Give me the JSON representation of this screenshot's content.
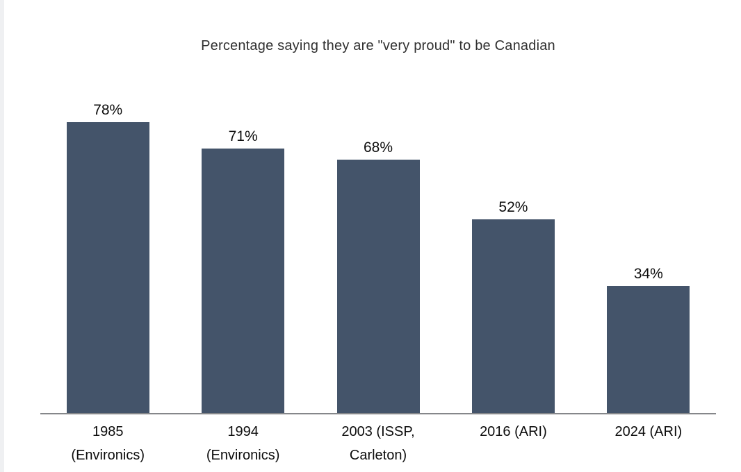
{
  "page": {
    "background_color": "#ffffff",
    "left_edge_strip_color": "#eff0f2"
  },
  "chart_data": {
    "type": "bar",
    "title": "Percentage saying they are \"very proud\" to be Canadian",
    "categories": [
      "1985 (Environics)",
      "1994 (Environics)",
      "2003 (ISSP, Carleton)",
      "2016 (ARI)",
      "2024 (ARI)"
    ],
    "values": [
      78,
      71,
      68,
      52,
      34
    ],
    "value_labels": [
      "78%",
      "71%",
      "68%",
      "52%",
      "34%"
    ],
    "xlabel": "",
    "ylabel": "",
    "ylim": [
      0,
      100
    ],
    "grid": false,
    "legend": "none",
    "data_label_position": "above-bar",
    "bar_color": "#44546a",
    "axis_line_color": "#85878a",
    "title_color": "#303030",
    "label_color": "#0d0d0d"
  }
}
